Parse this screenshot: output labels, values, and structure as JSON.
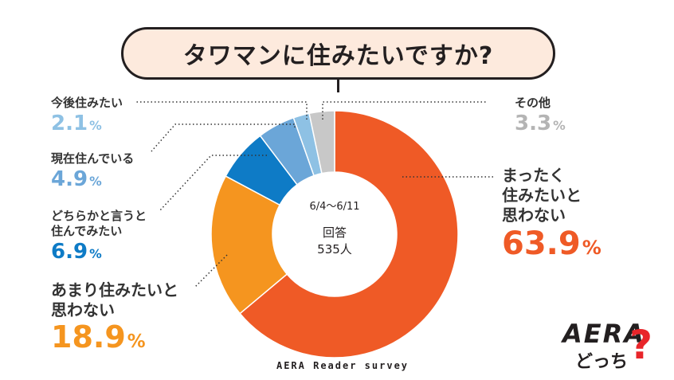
{
  "title": "タワマンに住みたいですか?",
  "center": {
    "dates": "6/4～6/11",
    "label": "回答",
    "n": "535人"
  },
  "footer": "AERA Reader survey",
  "logo": {
    "main": "AERA",
    "sub": "どっち",
    "mark": "?"
  },
  "colors": {
    "other": "#c8c8c8",
    "want_to_live": "#8ec1e4",
    "living_now": "#6ba6d8",
    "rather_want": "#0e7bc6",
    "rather_not": "#f5951f",
    "not_at_all": "#ef5a26"
  },
  "chart_data": {
    "type": "pie",
    "title": "タワマンに住みたいですか?",
    "unit": "%",
    "slices": [
      {
        "label": "まったく住みたいと思わない",
        "value": 63.9,
        "display": "63.9",
        "color": "#ef5a26"
      },
      {
        "label": "あまり住みたいと思わない",
        "value": 18.9,
        "display": "18.9",
        "color": "#f5951f"
      },
      {
        "label": "どちらかと言うと住んでみたい",
        "value": 6.9,
        "display": "6.9",
        "color": "#0e7bc6"
      },
      {
        "label": "現在住んでいる",
        "value": 4.9,
        "display": "4.9",
        "color": "#6ba6d8"
      },
      {
        "label": "今後住みたい",
        "value": 2.1,
        "display": "2.1",
        "color": "#8ec1e4"
      },
      {
        "label": "その他",
        "value": 3.3,
        "display": "3.3",
        "color": "#c8c8c8"
      }
    ]
  },
  "labels": {
    "not_at_all": {
      "line1": "まったく",
      "line2": "住みたいと",
      "line3": "思わない",
      "pct": "63.9"
    },
    "rather_not": {
      "line1": "あまり住みたいと",
      "line2": "思わない",
      "pct": "18.9"
    },
    "rather_want": {
      "line1": "どちらかと言うと",
      "line2": "住んでみたい",
      "pct": "6.9"
    },
    "living_now": {
      "line1": "現在住んでいる",
      "pct": "4.9"
    },
    "want_to_live": {
      "line1": "今後住みたい",
      "pct": "2.1"
    },
    "other": {
      "line1": "その他",
      "pct": "3.3"
    },
    "percent_sign": "%"
  }
}
